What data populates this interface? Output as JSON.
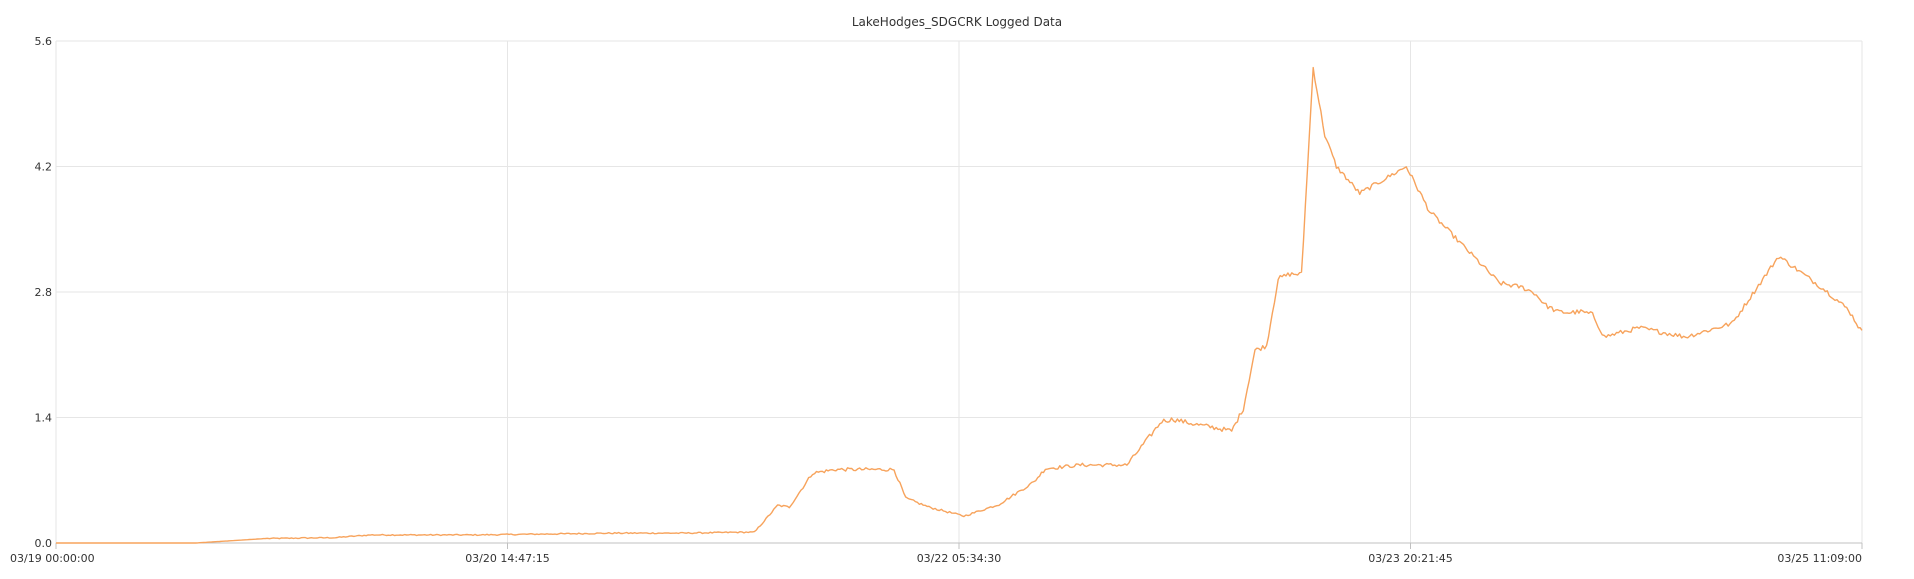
{
  "chart_data": {
    "type": "line",
    "title": "LakeHodges_SDGCRK Logged Data",
    "xlabel": "",
    "ylabel": "",
    "ylim": [
      0,
      5.6
    ],
    "yticks": [
      "0.0",
      "1.4",
      "2.8",
      "4.2",
      "5.6"
    ],
    "xticks": [
      "03/19 00:00:00",
      "03/20 14:47:15",
      "03/22 05:34:30",
      "03/23 20:21:45",
      "03/25 11:09:00"
    ],
    "grid": true,
    "legend": "none",
    "line_color": "#f7a35c",
    "series": [
      {
        "x": [
          "03/19 00:00",
          "03/19 12:00",
          "03/19 18:00",
          "03/20 00:00",
          "03/20 03:00",
          "03/20 12:00",
          "03/20 18:00",
          "03/21 00:00",
          "03/21 06:00",
          "03/21 10:45",
          "03/21 12:00",
          "03/21 14:00",
          "03/21 15:00",
          "03/21 17:00",
          "03/21 19:00",
          "03/21 20:00",
          "03/22 00:00",
          "03/22 01:00",
          "03/22 03:00",
          "03/22 06:00",
          "03/22 09:00",
          "03/22 12:00",
          "03/22 13:00",
          "03/22 16:00",
          "03/22 20:00",
          "03/22 23:00",
          "03/23 00:00",
          "03/23 02:00",
          "03/23 03:00",
          "03/23 05:00",
          "03/23 06:00",
          "03/23 07:00",
          "03/23 08:00",
          "03/23 09:00",
          "03/23 10:00",
          "03/23 11:00",
          "03/23 12:00",
          "03/23 13:00",
          "03/23 14:00",
          "03/23 16:00",
          "03/23 20:00",
          "03/23 22:00",
          "03/24 04:00",
          "03/24 06:00",
          "03/24 07:00",
          "03/24 08:00",
          "03/24 09:00",
          "03/24 10:00",
          "03/24 11:00",
          "03/24 12:00",
          "03/24 13:00",
          "03/24 16:00",
          "03/24 20:00",
          "03/25 00:00",
          "03/25 04:00",
          "03/25 08:00",
          "03/25 10:00",
          "03/25 11:09"
        ],
        "values": [
          0.0,
          0.0,
          0.05,
          0.06,
          0.09,
          0.09,
          0.1,
          0.11,
          0.11,
          0.12,
          0.12,
          0.42,
          0.4,
          0.78,
          0.82,
          0.82,
          0.82,
          0.5,
          0.4,
          0.3,
          0.43,
          0.68,
          0.83,
          0.87,
          0.87,
          1.36,
          1.38,
          1.32,
          1.3,
          1.25,
          1.5,
          2.15,
          2.2,
          2.95,
          3.0,
          3.0,
          5.3,
          4.55,
          4.2,
          3.9,
          4.2,
          3.7,
          2.9,
          2.85,
          2.79,
          2.65,
          2.58,
          2.57,
          2.58,
          2.55,
          2.3,
          2.4,
          2.3,
          2.45,
          3.2,
          2.82,
          2.6,
          2.35
        ]
      }
    ]
  }
}
